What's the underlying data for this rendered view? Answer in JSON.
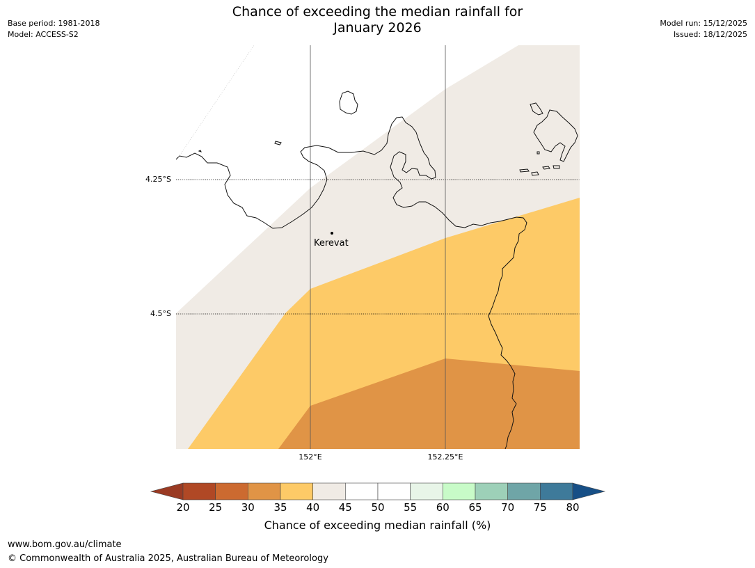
{
  "meta": {
    "base_period": "Base period: 1981-2018",
    "model": "Model: ACCESS-S2",
    "model_run": "Model run: 15/12/2025",
    "issued": "Issued: 18/12/2025"
  },
  "title": {
    "line1": "Chance of exceeding the median rainfall for",
    "line2": "January 2026"
  },
  "map": {
    "lat_labels": [
      "4.25°S",
      "4.5°S"
    ],
    "lon_labels": [
      "152°E",
      "152.25°E"
    ],
    "place": "Kerevat",
    "region_colors": {
      "band_40_45": "#f0ebe5",
      "band_35_40": "#fdca67",
      "band_30_35": "#e09446"
    }
  },
  "colorbar": {
    "ticks": [
      "20",
      "25",
      "30",
      "35",
      "40",
      "45",
      "50",
      "55",
      "60",
      "65",
      "70",
      "75",
      "80"
    ],
    "colors": [
      "#b04825",
      "#cc6a30",
      "#e09446",
      "#fdca67",
      "#f0ebe5",
      "#ffffff",
      "#ffffff",
      "#e8f5e8",
      "#c8fbc8",
      "#9dd0b8",
      "#6fa5a7",
      "#3e7a9a"
    ],
    "under_color": "#9a3a23",
    "over_color": "#174f86",
    "label": "Chance of exceeding median rainfall (%)"
  },
  "footer": {
    "url": "www.bom.gov.au/climate",
    "copyright": "© Commonwealth of Australia 2025, Australian Bureau of Meteorology"
  }
}
